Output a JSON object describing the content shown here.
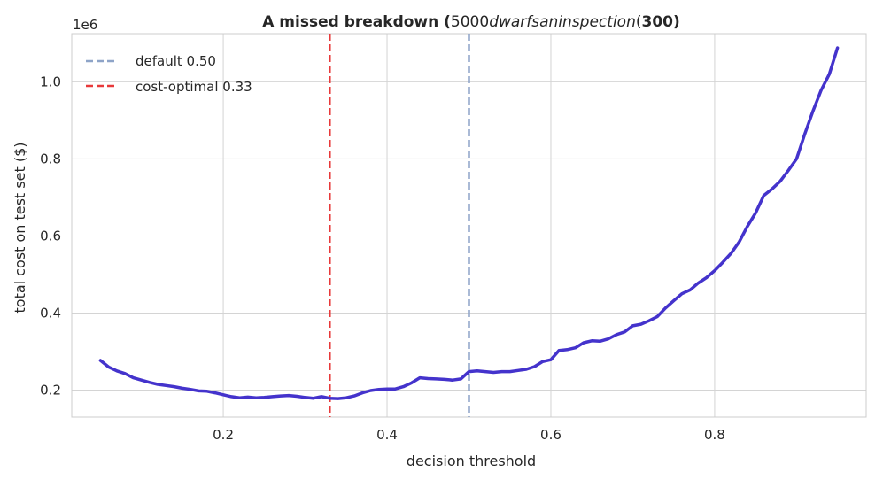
{
  "chart_data": {
    "type": "line",
    "title": {
      "bold_prefix": "A missed breakdown (",
      "plain_a": "5000",
      "italic": "dwarfsaninspection",
      "plain_b": "(",
      "bold_suffix": "300)"
    },
    "xlabel": "decision threshold",
    "ylabel": "total cost on test set ($)",
    "y_offset_label": "1e6",
    "xlim": [
      0.015,
      0.985
    ],
    "ylim": [
      0.13,
      1.125
    ],
    "xticks": [
      0.2,
      0.4,
      0.6,
      0.8
    ],
    "xtick_labels": [
      "0.2",
      "0.4",
      "0.6",
      "0.8"
    ],
    "yticks": [
      0.2,
      0.4,
      0.6,
      0.8,
      1.0
    ],
    "ytick_labels": [
      "0.2",
      "0.4",
      "0.6",
      "0.8",
      "1.0"
    ],
    "grid": true,
    "legend_position": "top-left",
    "series": [
      {
        "color": "#4433cc",
        "x": [
          0.05,
          0.06,
          0.07,
          0.08,
          0.09,
          0.1,
          0.11,
          0.12,
          0.13,
          0.14,
          0.15,
          0.16,
          0.17,
          0.18,
          0.19,
          0.2,
          0.21,
          0.22,
          0.23,
          0.24,
          0.25,
          0.26,
          0.27,
          0.28,
          0.29,
          0.3,
          0.31,
          0.32,
          0.33,
          0.34,
          0.35,
          0.36,
          0.37,
          0.38,
          0.39,
          0.4,
          0.41,
          0.42,
          0.43,
          0.44,
          0.45,
          0.46,
          0.47,
          0.48,
          0.49,
          0.5,
          0.51,
          0.52,
          0.53,
          0.54,
          0.55,
          0.56,
          0.57,
          0.58,
          0.59,
          0.6,
          0.61,
          0.62,
          0.63,
          0.64,
          0.65,
          0.66,
          0.67,
          0.68,
          0.69,
          0.7,
          0.71,
          0.72,
          0.73,
          0.74,
          0.75,
          0.76,
          0.77,
          0.78,
          0.79,
          0.8,
          0.81,
          0.82,
          0.83,
          0.84,
          0.85,
          0.86,
          0.87,
          0.88,
          0.89,
          0.9,
          0.91,
          0.92,
          0.93,
          0.94,
          0.95
        ],
        "y": [
          0.277,
          0.26,
          0.25,
          0.243,
          0.232,
          0.226,
          0.22,
          0.215,
          0.212,
          0.209,
          0.205,
          0.202,
          0.198,
          0.197,
          0.193,
          0.188,
          0.183,
          0.18,
          0.182,
          0.18,
          0.181,
          0.183,
          0.185,
          0.186,
          0.184,
          0.181,
          0.179,
          0.183,
          0.179,
          0.178,
          0.18,
          0.185,
          0.193,
          0.199,
          0.202,
          0.203,
          0.203,
          0.209,
          0.219,
          0.232,
          0.23,
          0.229,
          0.228,
          0.226,
          0.229,
          0.248,
          0.25,
          0.248,
          0.246,
          0.248,
          0.248,
          0.251,
          0.254,
          0.261,
          0.274,
          0.279,
          0.303,
          0.305,
          0.31,
          0.323,
          0.328,
          0.327,
          0.333,
          0.344,
          0.351,
          0.367,
          0.371,
          0.38,
          0.391,
          0.413,
          0.432,
          0.45,
          0.46,
          0.478,
          0.492,
          0.51,
          0.532,
          0.555,
          0.585,
          0.625,
          0.66,
          0.705,
          0.722,
          0.742,
          0.77,
          0.8,
          0.864,
          0.924,
          0.978,
          1.02,
          1.088
        ]
      }
    ],
    "vlines": [
      {
        "x": 0.5,
        "label": "default 0.50",
        "color": "#8ea4c8"
      },
      {
        "x": 0.33,
        "label": "cost-optimal 0.33",
        "color": "#e8393a"
      }
    ]
  }
}
